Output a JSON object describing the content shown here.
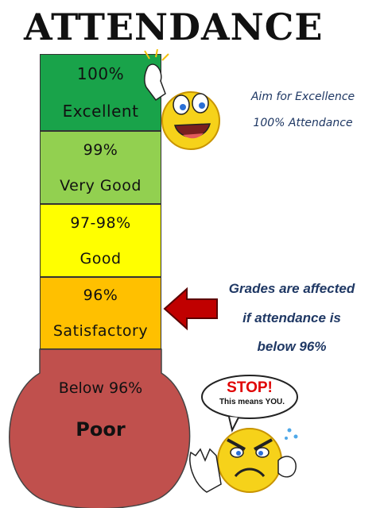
{
  "title": "ATTENDANCE",
  "bands": [
    {
      "percent": "100%",
      "label": "Excellent",
      "color": "#19a34a"
    },
    {
      "percent": "99%",
      "label": "Very Good",
      "color": "#92d050"
    },
    {
      "percent": "97-98%",
      "label": "Good",
      "color": "#ffff00"
    },
    {
      "percent": "96%",
      "label": "Satisfactory",
      "color": "#ffc000"
    }
  ],
  "bulb": {
    "percent": "Below 96%",
    "label": "Poor",
    "color": "#c0504d"
  },
  "aim": {
    "line1": "Aim for Excellence",
    "line2": "100% Attendance"
  },
  "grades": {
    "line1": "Grades are affected",
    "line2": "if attendance is",
    "line3": "below 96%"
  },
  "stop_sign": {
    "word": "STOP!",
    "subtext": "This means YOU."
  },
  "icons": {
    "happy": "happy-smiley-icon",
    "angry": "angry-smiley-icon",
    "arrow": "red-arrow-icon"
  }
}
